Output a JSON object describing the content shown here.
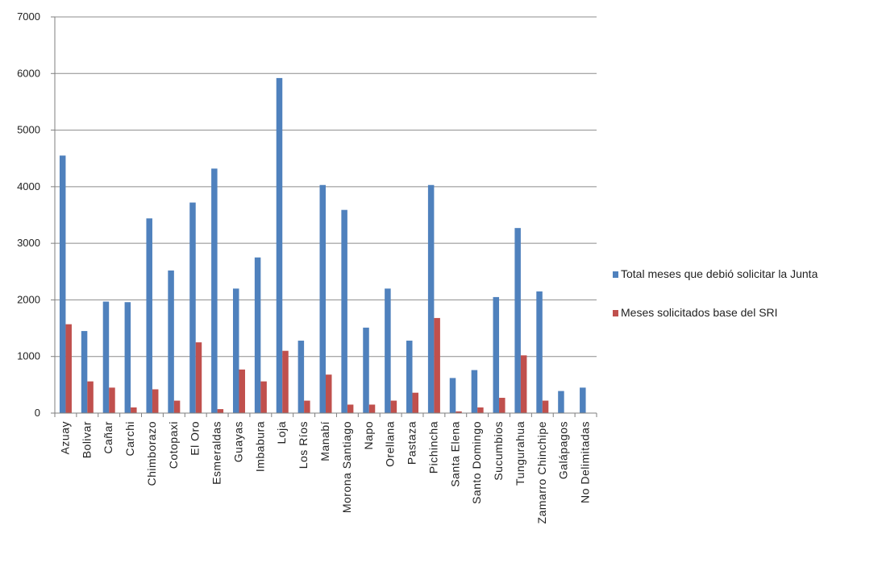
{
  "chart_data": {
    "type": "bar",
    "title": "",
    "xlabel": "",
    "ylabel": "",
    "ylim": [
      0,
      7000
    ],
    "yticks": [
      0,
      1000,
      2000,
      3000,
      4000,
      5000,
      6000,
      7000
    ],
    "grid": true,
    "legend_position": "right",
    "categories": [
      "Azuay",
      "Bolivar",
      "Cañar",
      "Carchi",
      "Chimborazo",
      "Cotopaxi",
      "El Oro",
      "Esmeraldas",
      "Guayas",
      "Imbabura",
      "Loja",
      "Los Ríos",
      "Manabí",
      "Morona Santiago",
      "Napo",
      "Orellana",
      "Pastaza",
      "Pichincha",
      "Santa Elena",
      "Santo Domingo",
      "Sucumbios",
      "Tungurahua",
      "Zamarro Chinchipe",
      "Galápagos",
      "No Delimitadas"
    ],
    "series": [
      {
        "name": "Total meses que debió solicitar la Junta",
        "color": "#4f81bd",
        "values": [
          4550,
          1450,
          1970,
          1960,
          3440,
          2520,
          3720,
          4320,
          2200,
          2750,
          5920,
          1280,
          4030,
          3590,
          1510,
          2200,
          1280,
          4030,
          620,
          760,
          2050,
          3270,
          2150,
          390,
          450
        ]
      },
      {
        "name": "Meses solicitados base del SRI",
        "color": "#c0504d",
        "values": [
          1570,
          560,
          450,
          100,
          420,
          220,
          1250,
          70,
          770,
          560,
          1100,
          220,
          680,
          150,
          150,
          220,
          360,
          1680,
          30,
          100,
          270,
          1020,
          220,
          0,
          0
        ]
      }
    ]
  }
}
